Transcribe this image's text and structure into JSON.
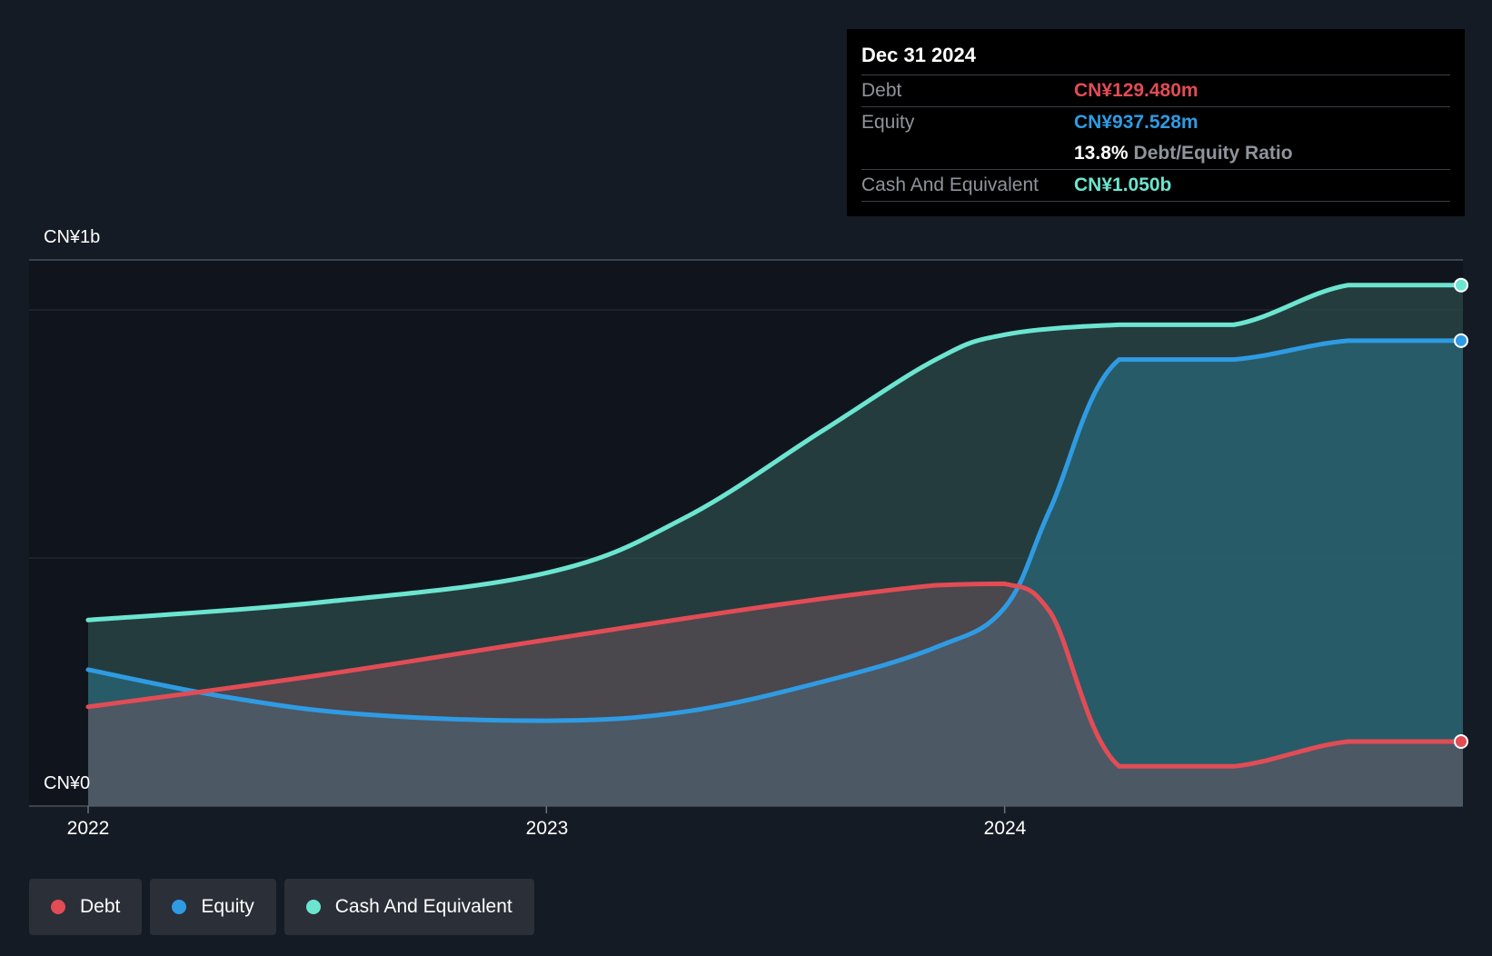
{
  "tooltip": {
    "date": "Dec 31 2024",
    "debt_label": "Debt",
    "debt_value": "CN¥129.480m",
    "equity_label": "Equity",
    "equity_value": "CN¥937.528m",
    "ratio_value": "13.8%",
    "ratio_label": "Debt/Equity Ratio",
    "cash_label": "Cash And Equivalent",
    "cash_value": "CN¥1.050b"
  },
  "legend": {
    "debt": "Debt",
    "equity": "Equity",
    "cash": "Cash And Equivalent"
  },
  "colors": {
    "debt": "#e24c55",
    "equity": "#2f9be3",
    "cash": "#6ce5d0"
  },
  "chart_data": {
    "type": "area",
    "x_ticks": [
      "2022",
      "2023",
      "2024"
    ],
    "y_tick_labels": [
      "CN¥0",
      "CN¥1b"
    ],
    "ylim": [
      0,
      1100
    ],
    "series": [
      {
        "name": "Debt",
        "x": [
          2022.0,
          2022.5,
          2023.0,
          2023.5,
          2023.85,
          2024.0,
          2024.1,
          2024.25,
          2024.5,
          2024.75,
          2025.0
        ],
        "values": [
          200,
          263,
          335,
          405,
          445,
          448,
          390,
          80,
          80,
          130,
          130
        ]
      },
      {
        "name": "Equity",
        "x": [
          2022.0,
          2022.3,
          2022.6,
          2023.0,
          2023.3,
          2023.6,
          2023.85,
          2024.0,
          2024.1,
          2024.25,
          2024.5,
          2024.75,
          2025.0
        ],
        "values": [
          275,
          220,
          185,
          172,
          190,
          250,
          320,
          400,
          600,
          900,
          900,
          938,
          938
        ]
      },
      {
        "name": "Cash And Equivalent",
        "x": [
          2022.0,
          2022.5,
          2023.0,
          2023.3,
          2023.6,
          2023.85,
          2024.0,
          2024.25,
          2024.5,
          2024.75,
          2025.0
        ],
        "values": [
          375,
          410,
          470,
          580,
          755,
          900,
          950,
          970,
          970,
          1050,
          1050
        ]
      }
    ]
  }
}
